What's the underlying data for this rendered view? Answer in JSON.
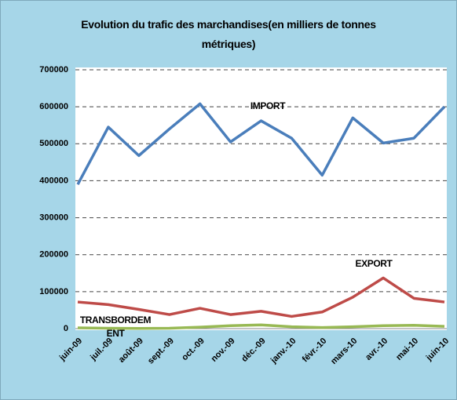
{
  "chart_data": {
    "type": "line",
    "title": "Evolution du trafic des marchandises(en milliers de tonnes métriques)",
    "categories": [
      "juin-09",
      "juil.-09",
      "août-09",
      "sept.-09",
      "oct.-09",
      "nov.-09",
      "déc.-09",
      "janv.-10",
      "févr.-10",
      "mars-10",
      "avr.-10",
      "mai-10",
      "juin-10"
    ],
    "series": [
      {
        "name": "IMPORT",
        "color": "#4a7ebb",
        "values": [
          390000,
          545000,
          468000,
          540000,
          608000,
          505000,
          562000,
          515000,
          415000,
          570000,
          502000,
          515000,
          600000
        ]
      },
      {
        "name": "EXPORT",
        "color": "#be4b48",
        "values": [
          72000,
          65000,
          52000,
          38000,
          55000,
          38000,
          47000,
          33000,
          45000,
          85000,
          137000,
          82000,
          72000
        ]
      },
      {
        "name": "TRANSBORDEMENT",
        "color": "#98b954",
        "values": [
          2000,
          1000,
          500,
          1000,
          4000,
          8000,
          10000,
          5000,
          3000,
          5000,
          8000,
          9000,
          6000
        ]
      }
    ],
    "ylim": [
      0,
      700000
    ],
    "yticks": [
      0,
      100000,
      200000,
      300000,
      400000,
      500000,
      600000,
      700000
    ],
    "grid": true
  }
}
